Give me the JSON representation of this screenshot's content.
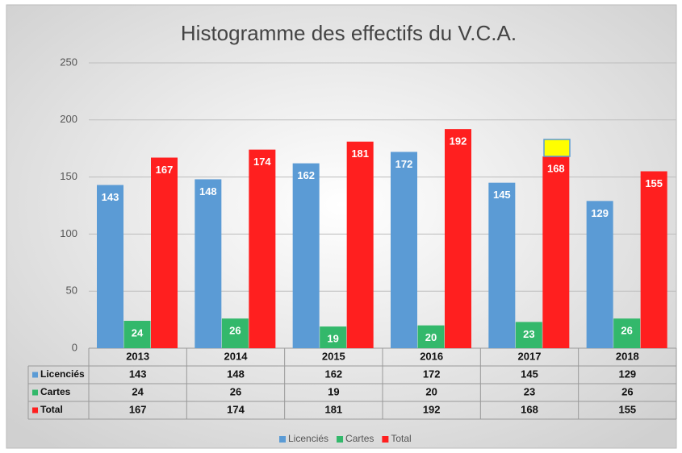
{
  "chart_data": {
    "type": "bar",
    "title": "Histogramme des effectifs du V.C.A.",
    "categories": [
      "2013",
      "2014",
      "2015",
      "2016",
      "2017",
      "2018"
    ],
    "series": [
      {
        "name": "Licenciés",
        "color": "#5b9bd5",
        "values": [
          143,
          148,
          162,
          172,
          145,
          129
        ]
      },
      {
        "name": "Cartes",
        "color": "#33b86b",
        "values": [
          24,
          26,
          19,
          20,
          23,
          26
        ]
      },
      {
        "name": "Total",
        "color": "#ff1f1f",
        "values": [
          167,
          174,
          181,
          192,
          168,
          155
        ]
      }
    ],
    "ylim": [
      0,
      250
    ],
    "yticks": [
      0,
      50,
      100,
      150,
      200,
      250
    ],
    "grid": true,
    "legend": "bottom"
  }
}
